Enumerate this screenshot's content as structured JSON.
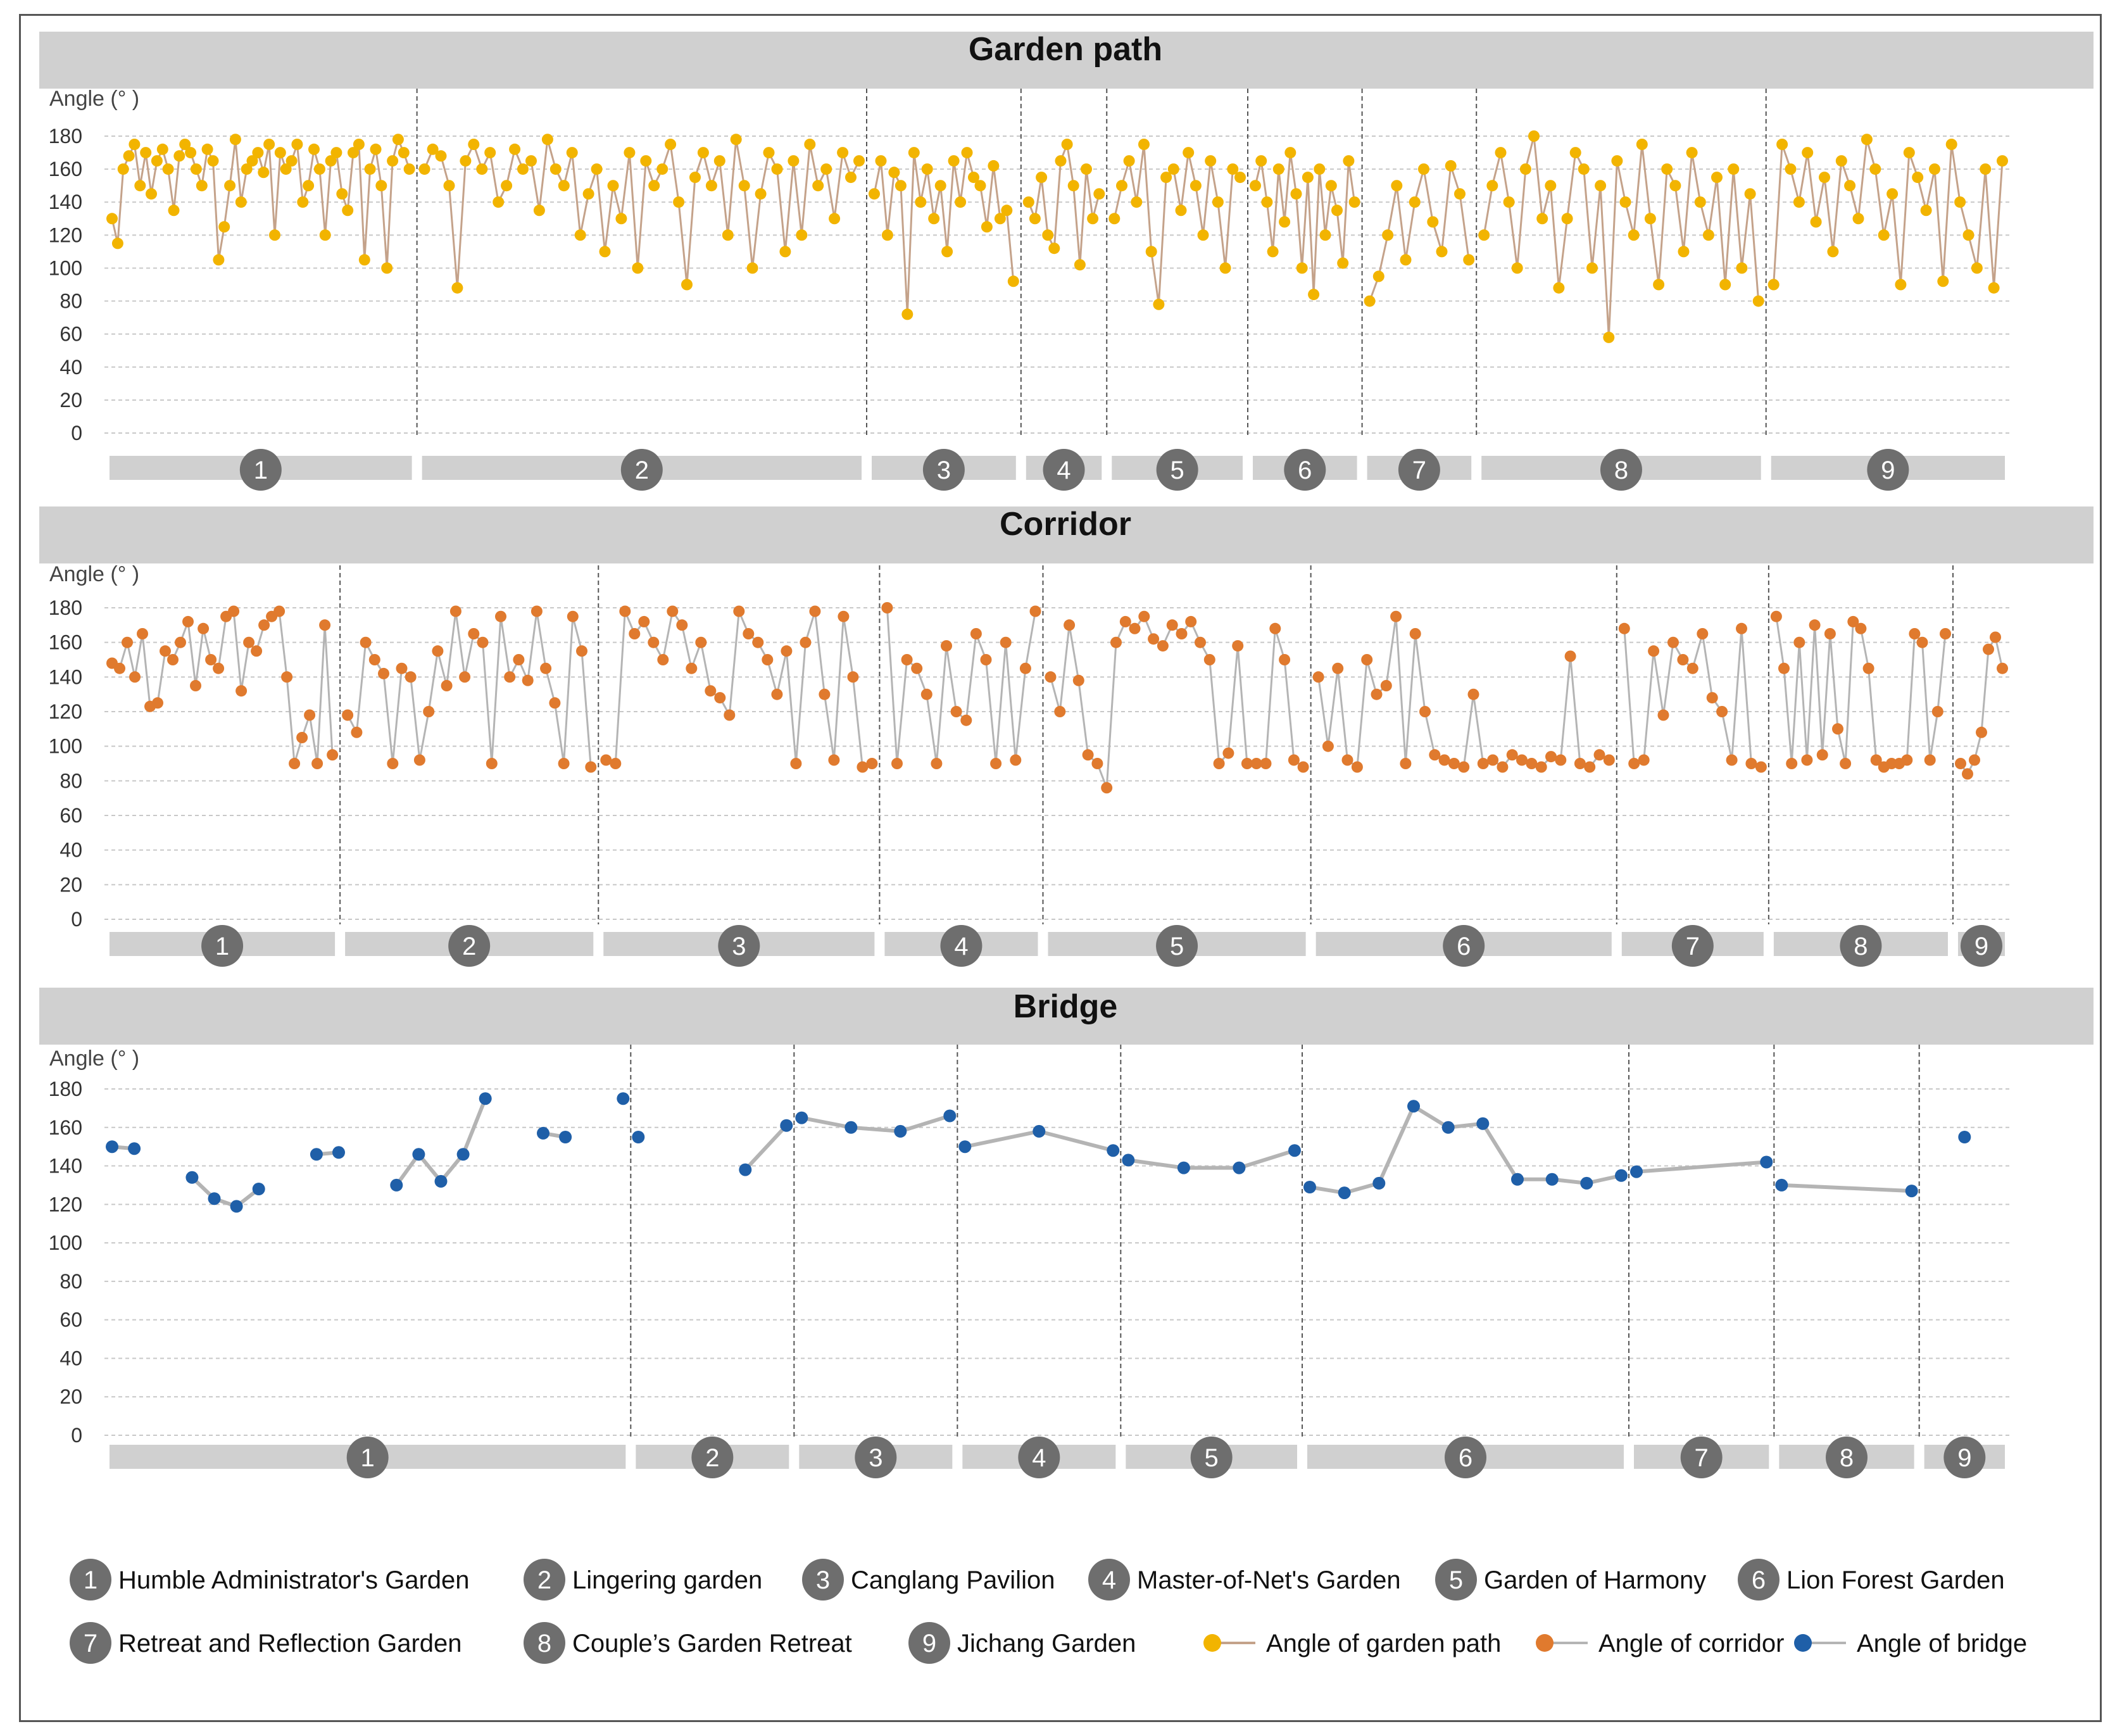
{
  "colors": {
    "path": "#F2B400",
    "corridor": "#E07A2E",
    "bridge": "#1F5FA8",
    "path_line": "#C4A28A",
    "grey_line": "#B4B4B4",
    "band": "#D0D0D0",
    "badge": "#6E6E6E"
  },
  "gardens": [
    {
      "num": "1",
      "name": "Humble Administrator's Garden"
    },
    {
      "num": "2",
      "name": "Lingering garden"
    },
    {
      "num": "3",
      "name": "Canglang Pavilion"
    },
    {
      "num": "4",
      "name": "Master-of-Net's Garden"
    },
    {
      "num": "5",
      "name": "Garden of Harmony"
    },
    {
      "num": "6",
      "name": "Lion Forest Garden"
    },
    {
      "num": "7",
      "name": "Retreat and Reflection Garden"
    },
    {
      "num": "8",
      "name": "Couple’s Garden Retreat"
    },
    {
      "num": "9",
      "name": "Jichang Garden"
    }
  ],
  "legend_series": [
    {
      "label": "Angle of garden path",
      "color": "#F2B400"
    },
    {
      "label": "Angle of corridor",
      "color": "#E07A2E"
    },
    {
      "label": "Angle of bridge",
      "color": "#1F5FA8"
    }
  ],
  "chart_data": [
    {
      "type": "line",
      "title": "Garden path",
      "ylabel": "Angle (° )",
      "ylim": [
        0,
        180
      ],
      "yticks": [
        0,
        20,
        40,
        60,
        80,
        100,
        120,
        140,
        160,
        180
      ],
      "grid": true,
      "categories": [
        "1",
        "2",
        "3",
        "4",
        "5",
        "6",
        "7",
        "8",
        "9"
      ],
      "group_shares": [
        0.164,
        0.236,
        0.081,
        0.045,
        0.074,
        0.06,
        0.06,
        0.152,
        0.128
      ],
      "series": [
        {
          "name": "Angle of garden path",
          "groups": [
            [
              130,
              115,
              160,
              168,
              175,
              150,
              170,
              145,
              165,
              172,
              160,
              135,
              168,
              175,
              170,
              160,
              150,
              172,
              165,
              105,
              125,
              150,
              178,
              140,
              160,
              165,
              170,
              158,
              175,
              120,
              170,
              160,
              165,
              175,
              140,
              150,
              172,
              160,
              120,
              165,
              170,
              145,
              135,
              170,
              175,
              105,
              160,
              172,
              150,
              100,
              165,
              178,
              170,
              160
            ],
            [
              160,
              172,
              168,
              150,
              88,
              165,
              175,
              160,
              170,
              140,
              150,
              172,
              160,
              165,
              135,
              178,
              160,
              150,
              170,
              120,
              145,
              160,
              110,
              150,
              130,
              170,
              100,
              165,
              150,
              160,
              175,
              140,
              90,
              155,
              170,
              150,
              165,
              120,
              178,
              150,
              100,
              145,
              170,
              160,
              110,
              165,
              120,
              175,
              150,
              160,
              130,
              170,
              155,
              165
            ],
            [
              145,
              165,
              120,
              158,
              150,
              72,
              170,
              140,
              160,
              130,
              150,
              110,
              165,
              140,
              170,
              155,
              150,
              125,
              162,
              130,
              135,
              92
            ],
            [
              140,
              130,
              155,
              120,
              112,
              165,
              175,
              150,
              102,
              160,
              130,
              145
            ],
            [
              130,
              150,
              165,
              140,
              175,
              110,
              78,
              155,
              160,
              135,
              170,
              150,
              120,
              165,
              140,
              100,
              160,
              155
            ],
            [
              150,
              165,
              140,
              110,
              160,
              128,
              170,
              145,
              100,
              155,
              84,
              160,
              120,
              150,
              135,
              103,
              165,
              140
            ],
            [
              80,
              95,
              120,
              150,
              105,
              140,
              160,
              128,
              110,
              162,
              145,
              105
            ],
            [
              120,
              150,
              170,
              140,
              100,
              160,
              180,
              130,
              150,
              88,
              130,
              170,
              160,
              100,
              150,
              58,
              165,
              140,
              120,
              175,
              130,
              90,
              160,
              150,
              110,
              170,
              140,
              120,
              155,
              90,
              160,
              100,
              145,
              80
            ],
            [
              90,
              175,
              160,
              140,
              170,
              128,
              155,
              110,
              165,
              150,
              130,
              178,
              160,
              120,
              145,
              90,
              170,
              155,
              135,
              160,
              92,
              175,
              140,
              120,
              100,
              160,
              88,
              165
            ]
          ]
        }
      ]
    },
    {
      "type": "line",
      "title": "Corridor",
      "ylabel": "Angle (° )",
      "ylim": [
        0,
        180
      ],
      "yticks": [
        0,
        20,
        40,
        60,
        80,
        100,
        120,
        140,
        160,
        180
      ],
      "grid": true,
      "categories": [
        "1",
        "2",
        "3",
        "4",
        "5",
        "6",
        "7",
        "8",
        "9"
      ],
      "group_shares": [
        0.124,
        0.136,
        0.148,
        0.086,
        0.141,
        0.161,
        0.08,
        0.097,
        0.03
      ],
      "series": [
        {
          "name": "Angle of corridor",
          "groups": [
            [
              148,
              145,
              160,
              140,
              165,
              123,
              125,
              155,
              150,
              160,
              172,
              135,
              168,
              150,
              145,
              175,
              178,
              132,
              160,
              155,
              170,
              175,
              178,
              140,
              90,
              105,
              118,
              90,
              170,
              95
            ],
            [
              118,
              108,
              160,
              150,
              142,
              90,
              145,
              140,
              92,
              120,
              155,
              135,
              178,
              140,
              165,
              160,
              90,
              175,
              140,
              150,
              138,
              178,
              145,
              125,
              90,
              175,
              155,
              88
            ],
            [
              92,
              90,
              178,
              165,
              172,
              160,
              150,
              178,
              170,
              145,
              160,
              132,
              128,
              118,
              178,
              165,
              160,
              150,
              130,
              155,
              90,
              160,
              178,
              130,
              92,
              175,
              140,
              88,
              90
            ],
            [
              180,
              90,
              150,
              145,
              130,
              90,
              158,
              120,
              115,
              165,
              150,
              90,
              160,
              92,
              145,
              178
            ],
            [
              140,
              120,
              170,
              138,
              95,
              90,
              76,
              160,
              172,
              168,
              175,
              162,
              158,
              170,
              165,
              172,
              160,
              150,
              90,
              96,
              158,
              90,
              90,
              90,
              168,
              150,
              92,
              88
            ],
            [
              140,
              100,
              145,
              92,
              88,
              150,
              130,
              135,
              175,
              90,
              165,
              120,
              95,
              92,
              90,
              88,
              130,
              90,
              92,
              88,
              95,
              92,
              90,
              88,
              94,
              92,
              152,
              90,
              88,
              95,
              92
            ],
            [
              168,
              90,
              92,
              155,
              118,
              160,
              150,
              145,
              165,
              128,
              120,
              92,
              168,
              90,
              88
            ],
            [
              175,
              145,
              90,
              160,
              92,
              170,
              95,
              165,
              110,
              90,
              172,
              168,
              145,
              92,
              88,
              90,
              90,
              92,
              165,
              160,
              92,
              120,
              165
            ],
            [
              90,
              84,
              92,
              108,
              156,
              163,
              145
            ]
          ]
        }
      ]
    },
    {
      "type": "line",
      "title": "Bridge",
      "ylabel": "Angle (° )",
      "ylim": [
        0,
        180
      ],
      "yticks": [
        0,
        20,
        40,
        60,
        80,
        100,
        120,
        140,
        160,
        180
      ],
      "grid": true,
      "categories": [
        "1",
        "2",
        "3",
        "4",
        "5",
        "6",
        "7",
        "8",
        "9"
      ],
      "group_shares": [
        0.29,
        0.09,
        0.09,
        0.09,
        0.1,
        0.18,
        0.08,
        0.08,
        0.05
      ],
      "series": [
        {
          "name": "Angle of bridge",
          "groups": [
            [
              [
                150,
                149
              ],
              [
                134,
                123,
                119,
                128
              ],
              [
                146,
                147
              ],
              [
                130,
                146,
                132,
                146,
                175
              ],
              [
                157,
                155
              ],
              [
                175
              ]
            ],
            [
              [
                155
              ],
              [
                138,
                161
              ]
            ],
            [
              [
                165,
                160,
                158,
                166
              ]
            ],
            [
              [
                150,
                158,
                148
              ]
            ],
            [
              [
                143,
                139,
                139,
                148
              ]
            ],
            [
              [
                129,
                126,
                131,
                171,
                160,
                162,
                133,
                133,
                131,
                135
              ]
            ],
            [
              [
                137,
                142
              ]
            ],
            [
              [
                130,
                127
              ]
            ],
            [
              [
                155
              ]
            ]
          ]
        }
      ]
    }
  ]
}
